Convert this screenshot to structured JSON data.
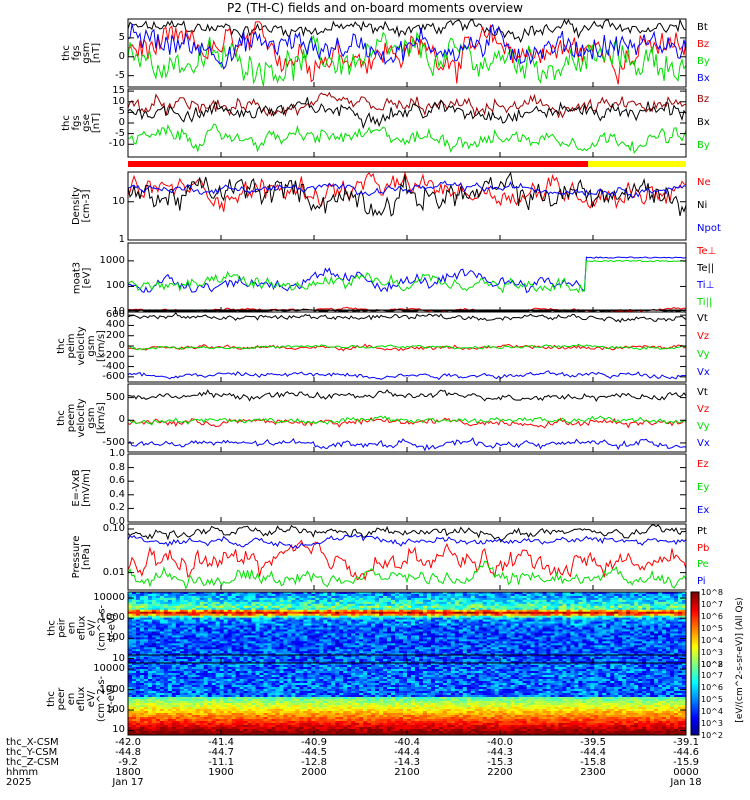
{
  "title": "P2 (TH-C) fields and on-board moments overview",
  "colors": {
    "black": "#000000",
    "red": "#ff0000",
    "green": "#00e000",
    "blue": "#0000ff",
    "darkred": "#a00000",
    "yellow": "#ffff00"
  },
  "chart_data": [
    {
      "type": "line",
      "ylabel": "thc\nfgs\ngsm\n[nT]",
      "ylim": [
        -8,
        10
      ],
      "yscale": "linear",
      "ticks": [
        "5",
        "0",
        "-5"
      ],
      "tick_vals": [
        5,
        0,
        -5
      ],
      "series": [
        {
          "name": "Bt",
          "color": "black",
          "level": 7.5,
          "noise": 1.5
        },
        {
          "name": "Bz",
          "color": "red",
          "level": 1.5,
          "noise": 3.5
        },
        {
          "name": "By",
          "color": "green",
          "level": -1,
          "noise": 3.5
        },
        {
          "name": "Bx",
          "color": "blue",
          "level": 3,
          "noise": 3
        }
      ]
    },
    {
      "type": "line",
      "ylabel": "thc\nfgs\ngse\n[nT]",
      "ylim": [
        -16,
        16
      ],
      "yscale": "linear",
      "ticks": [
        "15",
        "10",
        "5",
        "0",
        "-5",
        "-10"
      ],
      "tick_vals": [
        15,
        10,
        5,
        0,
        -5,
        -10
      ],
      "series": [
        {
          "name": "Bz",
          "color": "darkred",
          "level": 7,
          "noise": 3
        },
        {
          "name": "Bx",
          "color": "black",
          "level": 6,
          "noise": 3
        },
        {
          "name": "By",
          "color": "green",
          "level": -7,
          "noise": 3
        }
      ]
    },
    {
      "type": "line",
      "ylabel": "Density\n[cm-3]",
      "ylim": [
        1,
        60
      ],
      "yscale": "log",
      "ticks": [
        "10",
        "1"
      ],
      "tick_vals": [
        10,
        1
      ],
      "series": [
        {
          "name": "Ne",
          "color": "red",
          "level": 20,
          "noise": 0.3
        },
        {
          "name": "Ni",
          "color": "black",
          "level": 15,
          "noise": 0.35
        },
        {
          "name": "Npot",
          "color": "blue",
          "level": 22,
          "noise": 0.1
        }
      ]
    },
    {
      "type": "line",
      "ylabel": "moat3\n[eV]",
      "ylim": [
        10,
        5000
      ],
      "yscale": "log",
      "ticks": [
        "1000",
        "100",
        "10"
      ],
      "tick_vals": [
        1000,
        100,
        10
      ],
      "series": [
        {
          "name": "Te⊥",
          "color": "red",
          "level": 12,
          "noise": 0.05
        },
        {
          "name": "Te||",
          "color": "black",
          "level": 11,
          "noise": 0.05
        },
        {
          "name": "Ti⊥",
          "color": "blue",
          "level": 150,
          "noise": 0.25
        },
        {
          "name": "Ti||",
          "color": "green",
          "level": 110,
          "noise": 0.25
        }
      ]
    },
    {
      "type": "line",
      "ylabel": "thc\npeim\nvelocity\ngsm\n[km/s]",
      "ylim": [
        -700,
        700
      ],
      "yscale": "linear",
      "ticks": [
        "600",
        "400",
        "200",
        "0",
        "-200",
        "-400",
        "-600"
      ],
      "tick_vals": [
        600,
        400,
        200,
        0,
        -200,
        -400,
        -600
      ],
      "series": [
        {
          "name": "Vt",
          "color": "black",
          "level": 560,
          "noise": 40
        },
        {
          "name": "Vz",
          "color": "red",
          "level": -30,
          "noise": 30
        },
        {
          "name": "Vy",
          "color": "green",
          "level": -20,
          "noise": 25
        },
        {
          "name": "Vx",
          "color": "blue",
          "level": -560,
          "noise": 40
        }
      ]
    },
    {
      "type": "line",
      "ylabel": "thc\npeem\nvelocity\ngsm\n[km/s]",
      "ylim": [
        -700,
        800
      ],
      "yscale": "linear",
      "ticks": [
        "500",
        "0",
        "-500"
      ],
      "tick_vals": [
        500,
        0,
        -500
      ],
      "series": [
        {
          "name": "Vt",
          "color": "black",
          "level": 540,
          "noise": 60
        },
        {
          "name": "Vz",
          "color": "red",
          "level": -40,
          "noise": 60
        },
        {
          "name": "Vy",
          "color": "green",
          "level": 0,
          "noise": 50
        },
        {
          "name": "Vx",
          "color": "blue",
          "level": -520,
          "noise": 60
        }
      ]
    },
    {
      "type": "line",
      "ylabel": "E=-VxB\n[mV/m]",
      "ylim": [
        0,
        1
      ],
      "yscale": "linear",
      "ticks": [
        "1.0",
        "0.8",
        "0.6",
        "0.4",
        "0.2",
        "0.0"
      ],
      "tick_vals": [
        1,
        0.8,
        0.6,
        0.4,
        0.2,
        0
      ],
      "series": [
        {
          "name": "Ez",
          "color": "red",
          "level": null,
          "noise": 0
        },
        {
          "name": "Ey",
          "color": "green",
          "level": null,
          "noise": 0
        },
        {
          "name": "Ex",
          "color": "blue",
          "level": null,
          "noise": 0
        }
      ]
    },
    {
      "type": "line",
      "ylabel": "Pressure\n[nPa]",
      "ylim": [
        0.004,
        0.13
      ],
      "yscale": "log",
      "ticks": [
        "0.10",
        "0.01"
      ],
      "tick_vals": [
        0.1,
        0.01
      ],
      "series": [
        {
          "name": "Pt",
          "color": "black",
          "level": 0.08,
          "noise": 0.1
        },
        {
          "name": "Pb",
          "color": "red",
          "level": 0.018,
          "noise": 0.25
        },
        {
          "name": "Pe",
          "color": "green",
          "level": 0.008,
          "noise": 0.15
        },
        {
          "name": "Pi",
          "color": "blue",
          "level": 0.055,
          "noise": 0.08
        }
      ]
    },
    {
      "type": "heatmap",
      "ylabel": "thc\npeir\nen\neflux\neV/\n(cm^2-s-\nsr-eV)",
      "ylim": [
        6,
        20000
      ],
      "yscale": "log",
      "ticks": [
        "10000",
        "1000",
        "100",
        "10"
      ],
      "tick_vals": [
        10000,
        1000,
        100,
        10
      ]
    },
    {
      "type": "heatmap",
      "ylabel": "thc\npeer\nen\neflux\neV/\n(cm^2-s-\nsr-eV)",
      "ylim": [
        6,
        20000
      ],
      "yscale": "log",
      "ticks": [
        "10000",
        "1000",
        "100",
        "10"
      ],
      "tick_vals": [
        10000,
        1000,
        100,
        10
      ]
    }
  ],
  "colorbar": {
    "label": "[eV/(cm^2-s-sr-eV)] (All Qs)",
    "ticks_top": [
      "10^8",
      "10^7",
      "10^6",
      "10^5",
      "10^4",
      "10^3",
      "10^2"
    ],
    "ticks_bottom": [
      "10^8",
      "10^7",
      "10^6",
      "10^5",
      "10^4",
      "10^3",
      "10^2"
    ]
  },
  "xaxis": {
    "row_labels": [
      "thc_X-CSM",
      "thc_Y-CSM",
      "thc_Z-CSM",
      "hhmm",
      "2025"
    ],
    "columns": [
      {
        "x": "-42.0",
        "y": "-44.8",
        "z": "-9.2",
        "hhmm": "1800",
        "date": "Jan 17"
      },
      {
        "x": "-41.4",
        "y": "-44.7",
        "z": "-11.1",
        "hhmm": "1900",
        "date": ""
      },
      {
        "x": "-40.9",
        "y": "-44.5",
        "z": "-12.8",
        "hhmm": "2000",
        "date": ""
      },
      {
        "x": "-40.4",
        "y": "-44.4",
        "z": "-14.3",
        "hhmm": "2100",
        "date": ""
      },
      {
        "x": "-40.0",
        "y": "-44.3",
        "z": "-15.3",
        "hhmm": "2200",
        "date": ""
      },
      {
        "x": "-39.5",
        "y": "-44.4",
        "z": "-15.8",
        "hhmm": "2300",
        "date": ""
      },
      {
        "x": "-39.1",
        "y": "-44.6",
        "z": "-15.9",
        "hhmm": "0000",
        "date": "Jan 18"
      }
    ]
  }
}
